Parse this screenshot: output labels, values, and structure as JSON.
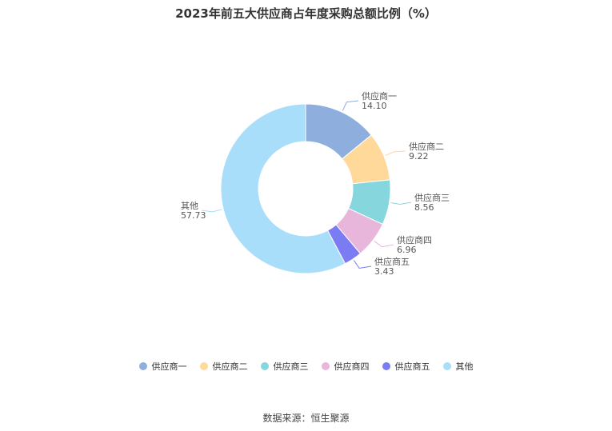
{
  "chart_data": {
    "type": "pie",
    "title": "2023年前五大供应商占年度采购总额比例（%）",
    "categories": [
      "供应商一",
      "供应商二",
      "供应商三",
      "供应商四",
      "供应商五",
      "其他"
    ],
    "values": [
      14.1,
      9.22,
      8.56,
      6.96,
      3.43,
      57.73
    ],
    "value_labels": [
      "14.10",
      "9.22",
      "8.56",
      "6.96",
      "3.43",
      "57.73"
    ],
    "colors": [
      "#8eaedd",
      "#ffd99a",
      "#85d6dd",
      "#e8b6da",
      "#7b7cf4",
      "#a8def9"
    ],
    "donut": true,
    "legend_position": "bottom"
  },
  "legend": {
    "items": [
      "供应商一",
      "供应商二",
      "供应商三",
      "供应商四",
      "供应商五",
      "其他"
    ]
  },
  "source": "数据来源：恒生聚源"
}
